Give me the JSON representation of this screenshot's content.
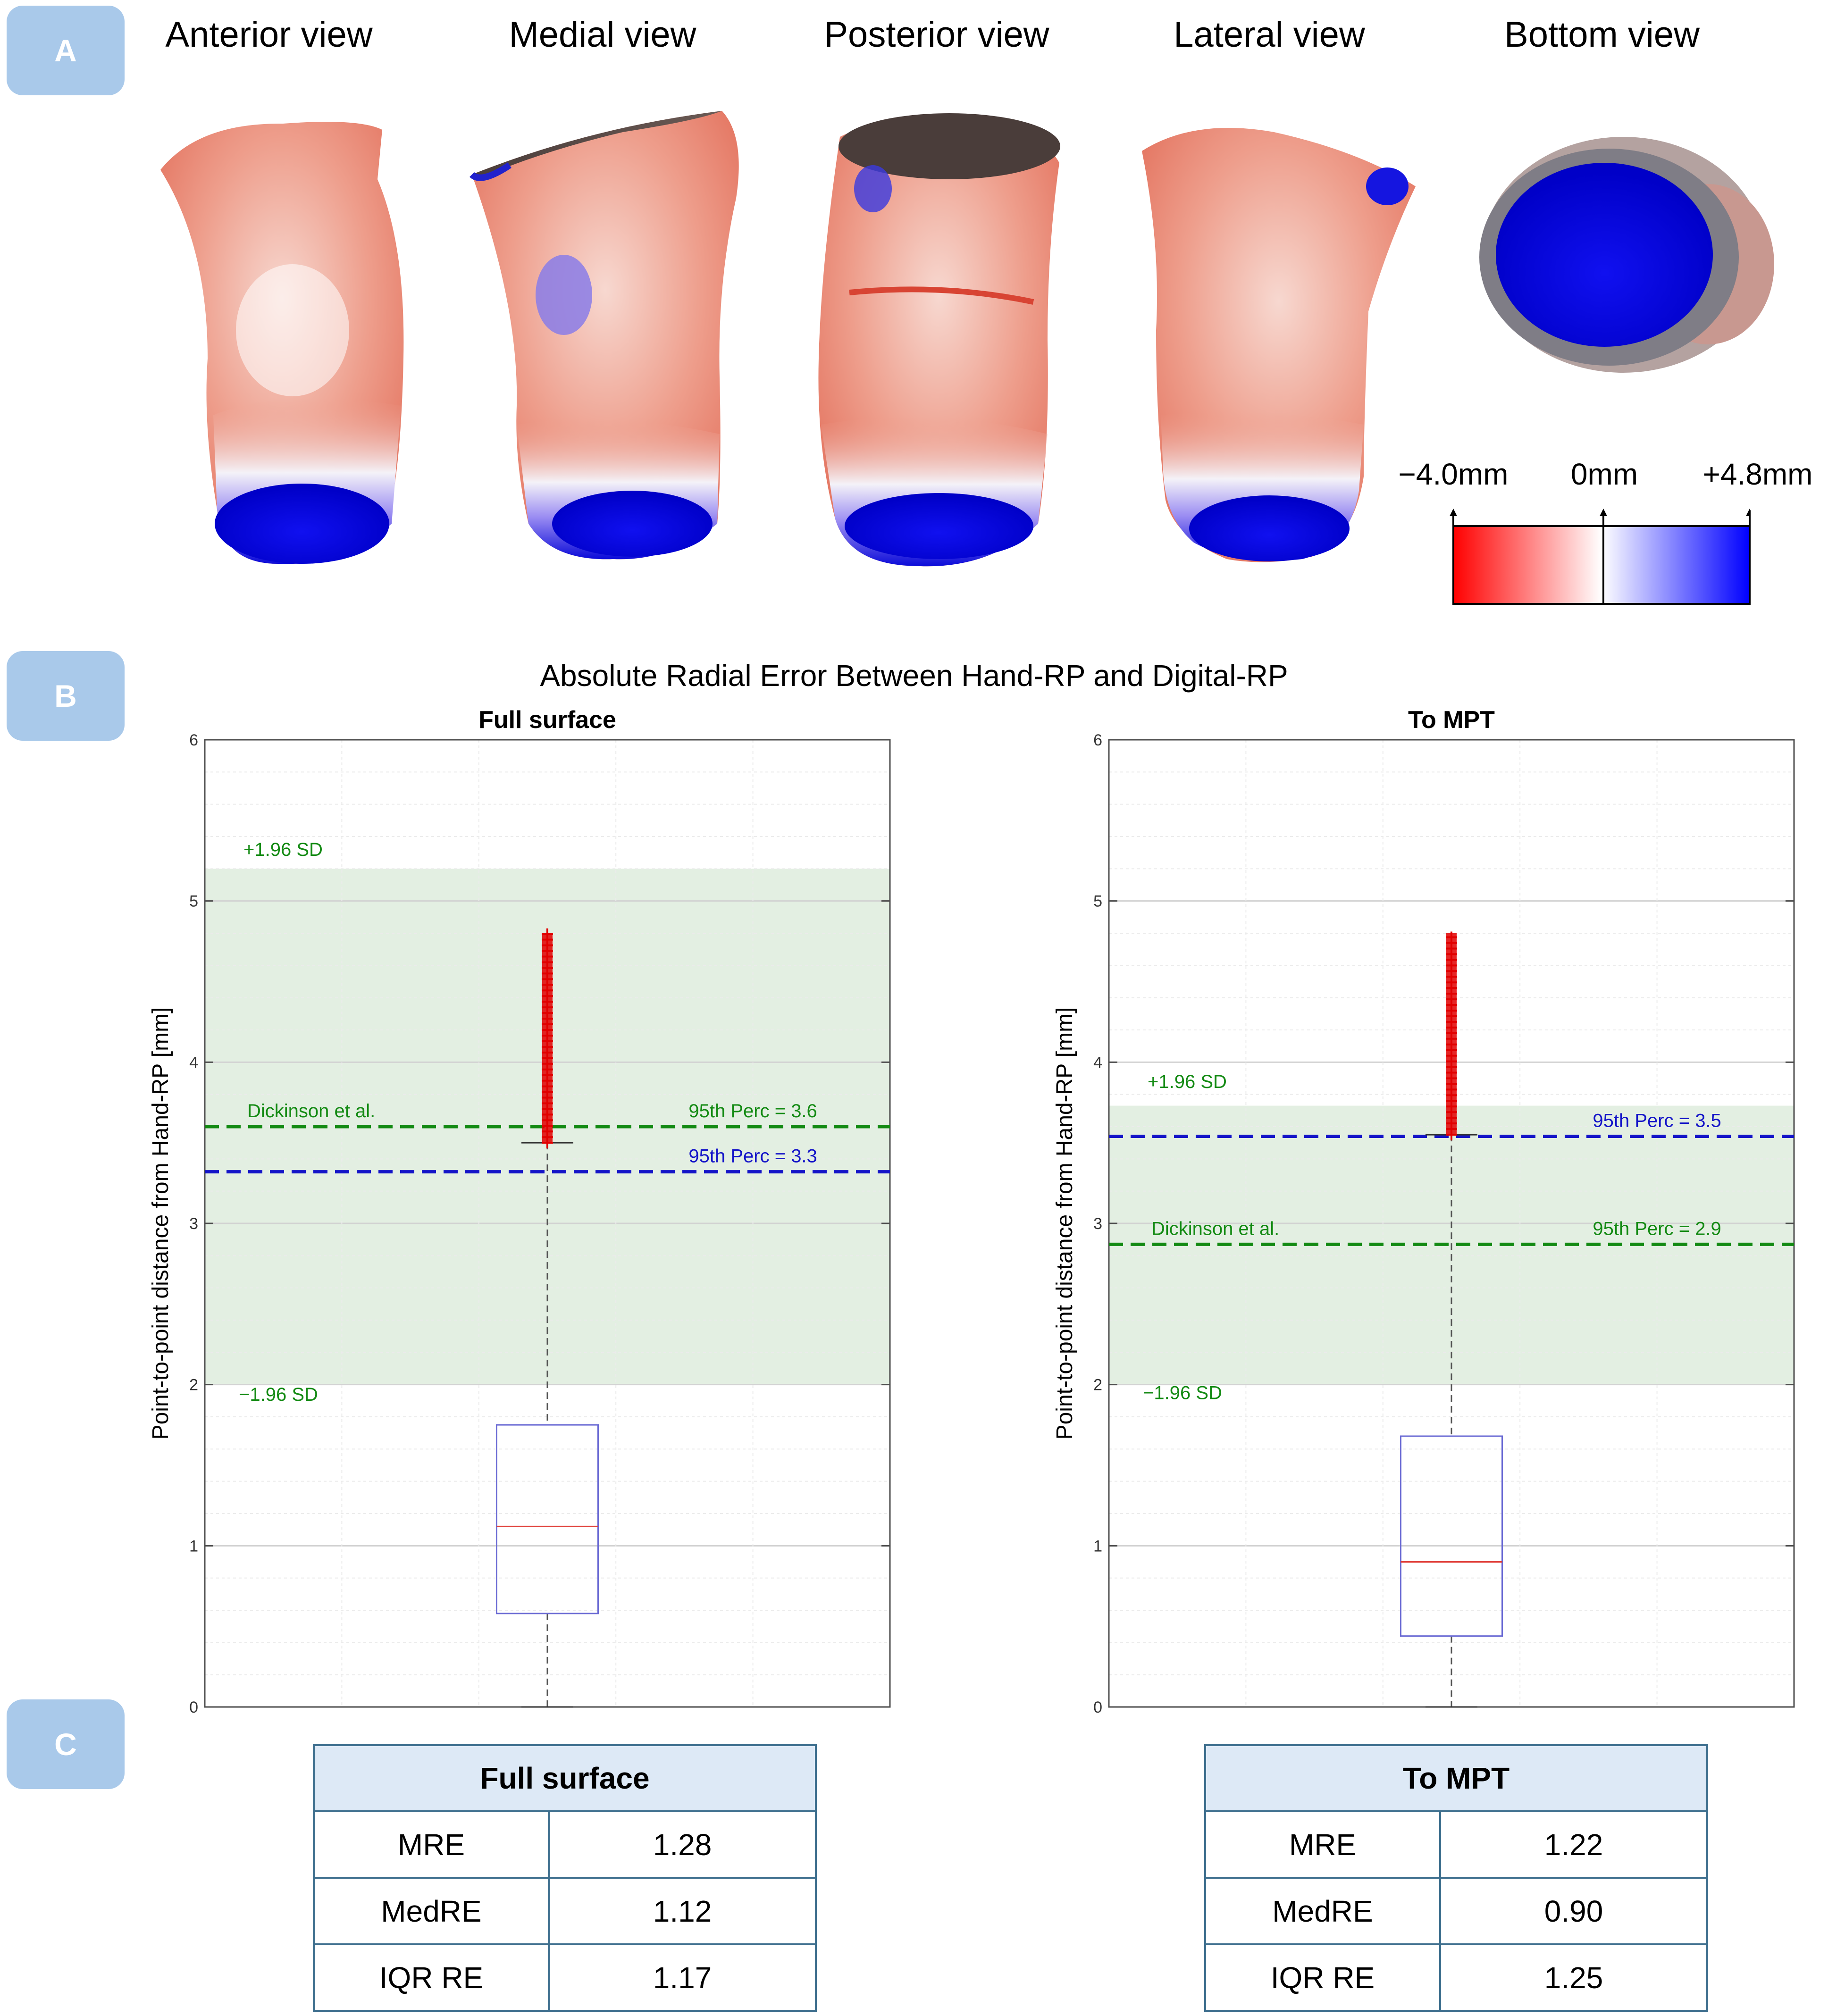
{
  "panels": {
    "a": "A",
    "b": "B",
    "c": "C"
  },
  "views": [
    "Anterior view",
    "Medial view",
    "Posterior view",
    "Lateral view",
    "Bottom view"
  ],
  "colorbar": {
    "min": "−4.0mm",
    "mid": "0mm",
    "max": "+4.8mm",
    "colors": {
      "neg": "#ff0000",
      "zero": "#ffffff",
      "pos": "#0000ff"
    }
  },
  "chart_title": "Absolute Radial Error Between Hand-RP and Digital-RP",
  "chart_data": [
    {
      "type": "box",
      "title": "Full surface",
      "ylabel": "Point-to-point distance from Hand-RP [mm]",
      "ylim": [
        0,
        6
      ],
      "yticks": [
        "0",
        "1",
        "2",
        "3",
        "4",
        "5",
        "6"
      ],
      "box": {
        "min": 0,
        "q1": 0.58,
        "median": 1.12,
        "q3": 1.75,
        "whisker_high": 3.5,
        "outliers_range": [
          3.5,
          4.8
        ]
      },
      "loa_band": {
        "lower": 2.0,
        "upper": 5.2,
        "upper_label": "+1.96 SD",
        "lower_label": "−1.96 SD"
      },
      "ref_lines": [
        {
          "value": 3.6,
          "color": "#138a13",
          "left_label": "Dickinson et al.",
          "right_label": "95th Perc = 3.6"
        },
        {
          "value": 3.32,
          "color": "#1414c8",
          "right_label": "95th Perc = 3.3"
        }
      ],
      "label_positions": {
        "upper_sd": 5.28,
        "lower_sd": 1.9
      }
    },
    {
      "type": "box",
      "title": "To MPT",
      "ylabel": "Point-to-point distance from Hand-RP [mm]",
      "ylim": [
        0,
        6
      ],
      "yticks": [
        "0",
        "1",
        "2",
        "3",
        "4",
        "5",
        "6"
      ],
      "box": {
        "min": 0,
        "q1": 0.44,
        "median": 0.9,
        "q3": 1.68,
        "whisker_high": 3.55,
        "outliers_range": [
          3.55,
          4.8
        ]
      },
      "loa_band": {
        "lower": 2.0,
        "upper": 3.73,
        "upper_label": "+1.96 SD",
        "lower_label": "−1.96 SD"
      },
      "ref_lines": [
        {
          "value": 3.54,
          "color": "#1414c8",
          "right_label": "95th Perc = 3.5"
        },
        {
          "value": 2.87,
          "color": "#138a13",
          "left_label": "Dickinson et al.",
          "right_label": "95th Perc = 2.9"
        }
      ],
      "label_positions": {
        "upper_sd": 3.84,
        "lower_sd": 1.91
      }
    }
  ],
  "tables": [
    {
      "title": "Full surface",
      "rows": [
        [
          "MRE",
          "1.28"
        ],
        [
          "MedRE",
          "1.12"
        ],
        [
          "IQR RE",
          "1.17"
        ]
      ]
    },
    {
      "title": "To MPT",
      "rows": [
        [
          "MRE",
          "1.22"
        ],
        [
          "MedRE",
          "0.90"
        ],
        [
          "IQR RE",
          "1.25"
        ]
      ]
    }
  ]
}
